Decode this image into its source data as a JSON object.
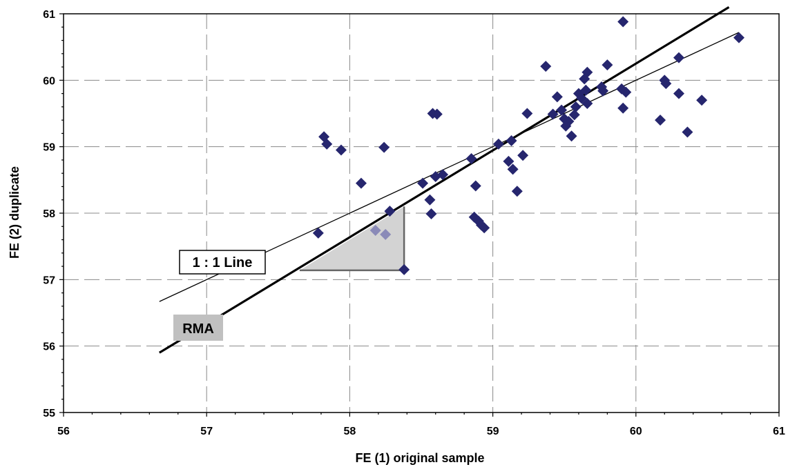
{
  "chart_data": {
    "type": "scatter",
    "xlabel": "FE (1) original sample",
    "ylabel": "FE (2) duplicate",
    "xlim": [
      56,
      61
    ],
    "ylim": [
      55,
      61
    ],
    "x_ticks": [
      "56",
      "57",
      "58",
      "59",
      "60",
      "61"
    ],
    "y_ticks": [
      "55",
      "56",
      "57",
      "58",
      "59",
      "60",
      "61"
    ],
    "grid": true,
    "marker": "diamond",
    "marker_color": "#26266e",
    "points": [
      [
        57.78,
        57.7
      ],
      [
        57.82,
        59.15
      ],
      [
        57.84,
        59.04
      ],
      [
        57.94,
        58.95
      ],
      [
        58.08,
        58.45
      ],
      [
        58.18,
        57.74
      ],
      [
        58.24,
        58.99
      ],
      [
        58.25,
        57.68
      ],
      [
        58.28,
        58.03
      ],
      [
        58.38,
        57.15
      ],
      [
        58.51,
        58.45
      ],
      [
        58.56,
        58.2
      ],
      [
        58.57,
        57.99
      ],
      [
        58.58,
        59.5
      ],
      [
        58.6,
        58.55
      ],
      [
        58.61,
        59.49
      ],
      [
        58.65,
        58.58
      ],
      [
        58.85,
        58.82
      ],
      [
        58.87,
        57.94
      ],
      [
        58.88,
        58.41
      ],
      [
        58.9,
        57.88
      ],
      [
        58.92,
        57.82
      ],
      [
        58.94,
        57.78
      ],
      [
        59.04,
        59.04
      ],
      [
        59.11,
        58.78
      ],
      [
        59.13,
        59.09
      ],
      [
        59.14,
        58.66
      ],
      [
        59.17,
        58.33
      ],
      [
        59.21,
        58.87
      ],
      [
        59.24,
        59.5
      ],
      [
        59.37,
        60.21
      ],
      [
        59.42,
        59.49
      ],
      [
        59.45,
        59.75
      ],
      [
        59.48,
        59.55
      ],
      [
        59.5,
        59.42
      ],
      [
        59.51,
        59.31
      ],
      [
        59.53,
        59.38
      ],
      [
        59.55,
        59.16
      ],
      [
        59.57,
        59.48
      ],
      [
        59.58,
        59.6
      ],
      [
        59.6,
        59.8
      ],
      [
        59.62,
        59.73
      ],
      [
        59.64,
        60.02
      ],
      [
        59.65,
        59.85
      ],
      [
        59.66,
        60.12
      ],
      [
        59.66,
        59.65
      ],
      [
        59.76,
        59.9
      ],
      [
        59.77,
        59.84
      ],
      [
        59.8,
        60.23
      ],
      [
        59.9,
        59.87
      ],
      [
        59.91,
        60.88
      ],
      [
        59.91,
        59.58
      ],
      [
        59.93,
        59.82
      ],
      [
        60.17,
        59.4
      ],
      [
        60.2,
        60.0
      ],
      [
        60.21,
        59.95
      ],
      [
        60.3,
        60.34
      ],
      [
        60.3,
        59.8
      ],
      [
        60.36,
        59.22
      ],
      [
        60.46,
        59.7
      ],
      [
        60.72,
        60.64
      ]
    ],
    "highlighted_points": [
      [
        58.18,
        57.74
      ],
      [
        58.25,
        57.68
      ]
    ],
    "lines": [
      {
        "name": "1 : 1 Line",
        "x1": 56.67,
        "y1": 56.67,
        "x2": 60.72,
        "y2": 60.72,
        "style": "thin"
      },
      {
        "name": "RMA",
        "x1": 56.67,
        "y1": 55.9,
        "x2": 60.65,
        "y2": 61.1,
        "style": "thick"
      }
    ],
    "triangle": {
      "x_left": 57.65,
      "x_right": 58.38,
      "y_bottom": 57.14,
      "y_top": 58.1,
      "fill": "#d3d3d3"
    },
    "annotations": {
      "line_label": "1 : 1 Line",
      "rma_label": "RMA"
    }
  }
}
